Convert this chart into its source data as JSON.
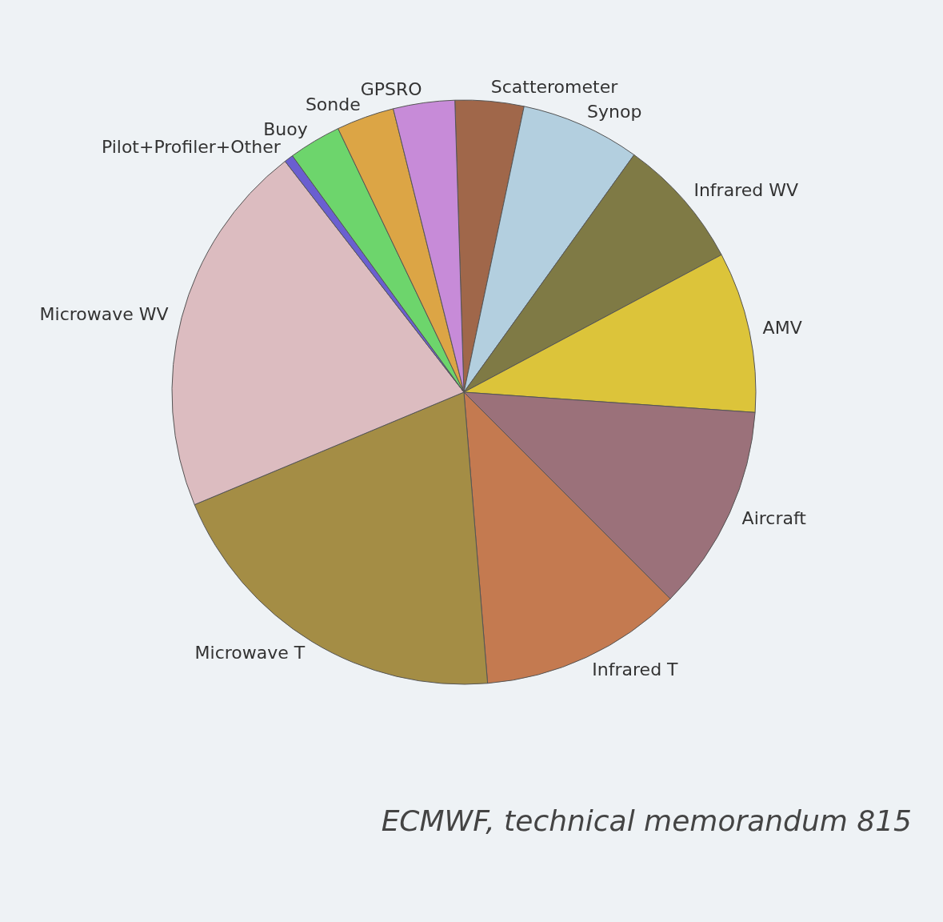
{
  "chart_data": {
    "type": "pie",
    "categories": [
      "Scatterometer",
      "Synop",
      "Infrared WV",
      "AMV",
      "Aircraft",
      "Infrared T",
      "Microwave T",
      "Microwave WV",
      "Pilot+Profiler+Other",
      "Buoy",
      "Sonde",
      "GPSRO"
    ],
    "values": [
      3.8,
      6.6,
      7.3,
      8.9,
      11.4,
      11.2,
      20.0,
      20.8,
      0.5,
      2.9,
      3.2,
      3.4
    ],
    "colors": [
      "#a0674a",
      "#b3cfdf",
      "#7f7a45",
      "#dcc43a",
      "#9b717a",
      "#c47a50",
      "#a48d45",
      "#dcbcc0",
      "#6a5fd0",
      "#6dd56c",
      "#dca545",
      "#c78bd8"
    ],
    "annotations": [
      "ECMWF, technical memorandum 815"
    ]
  }
}
